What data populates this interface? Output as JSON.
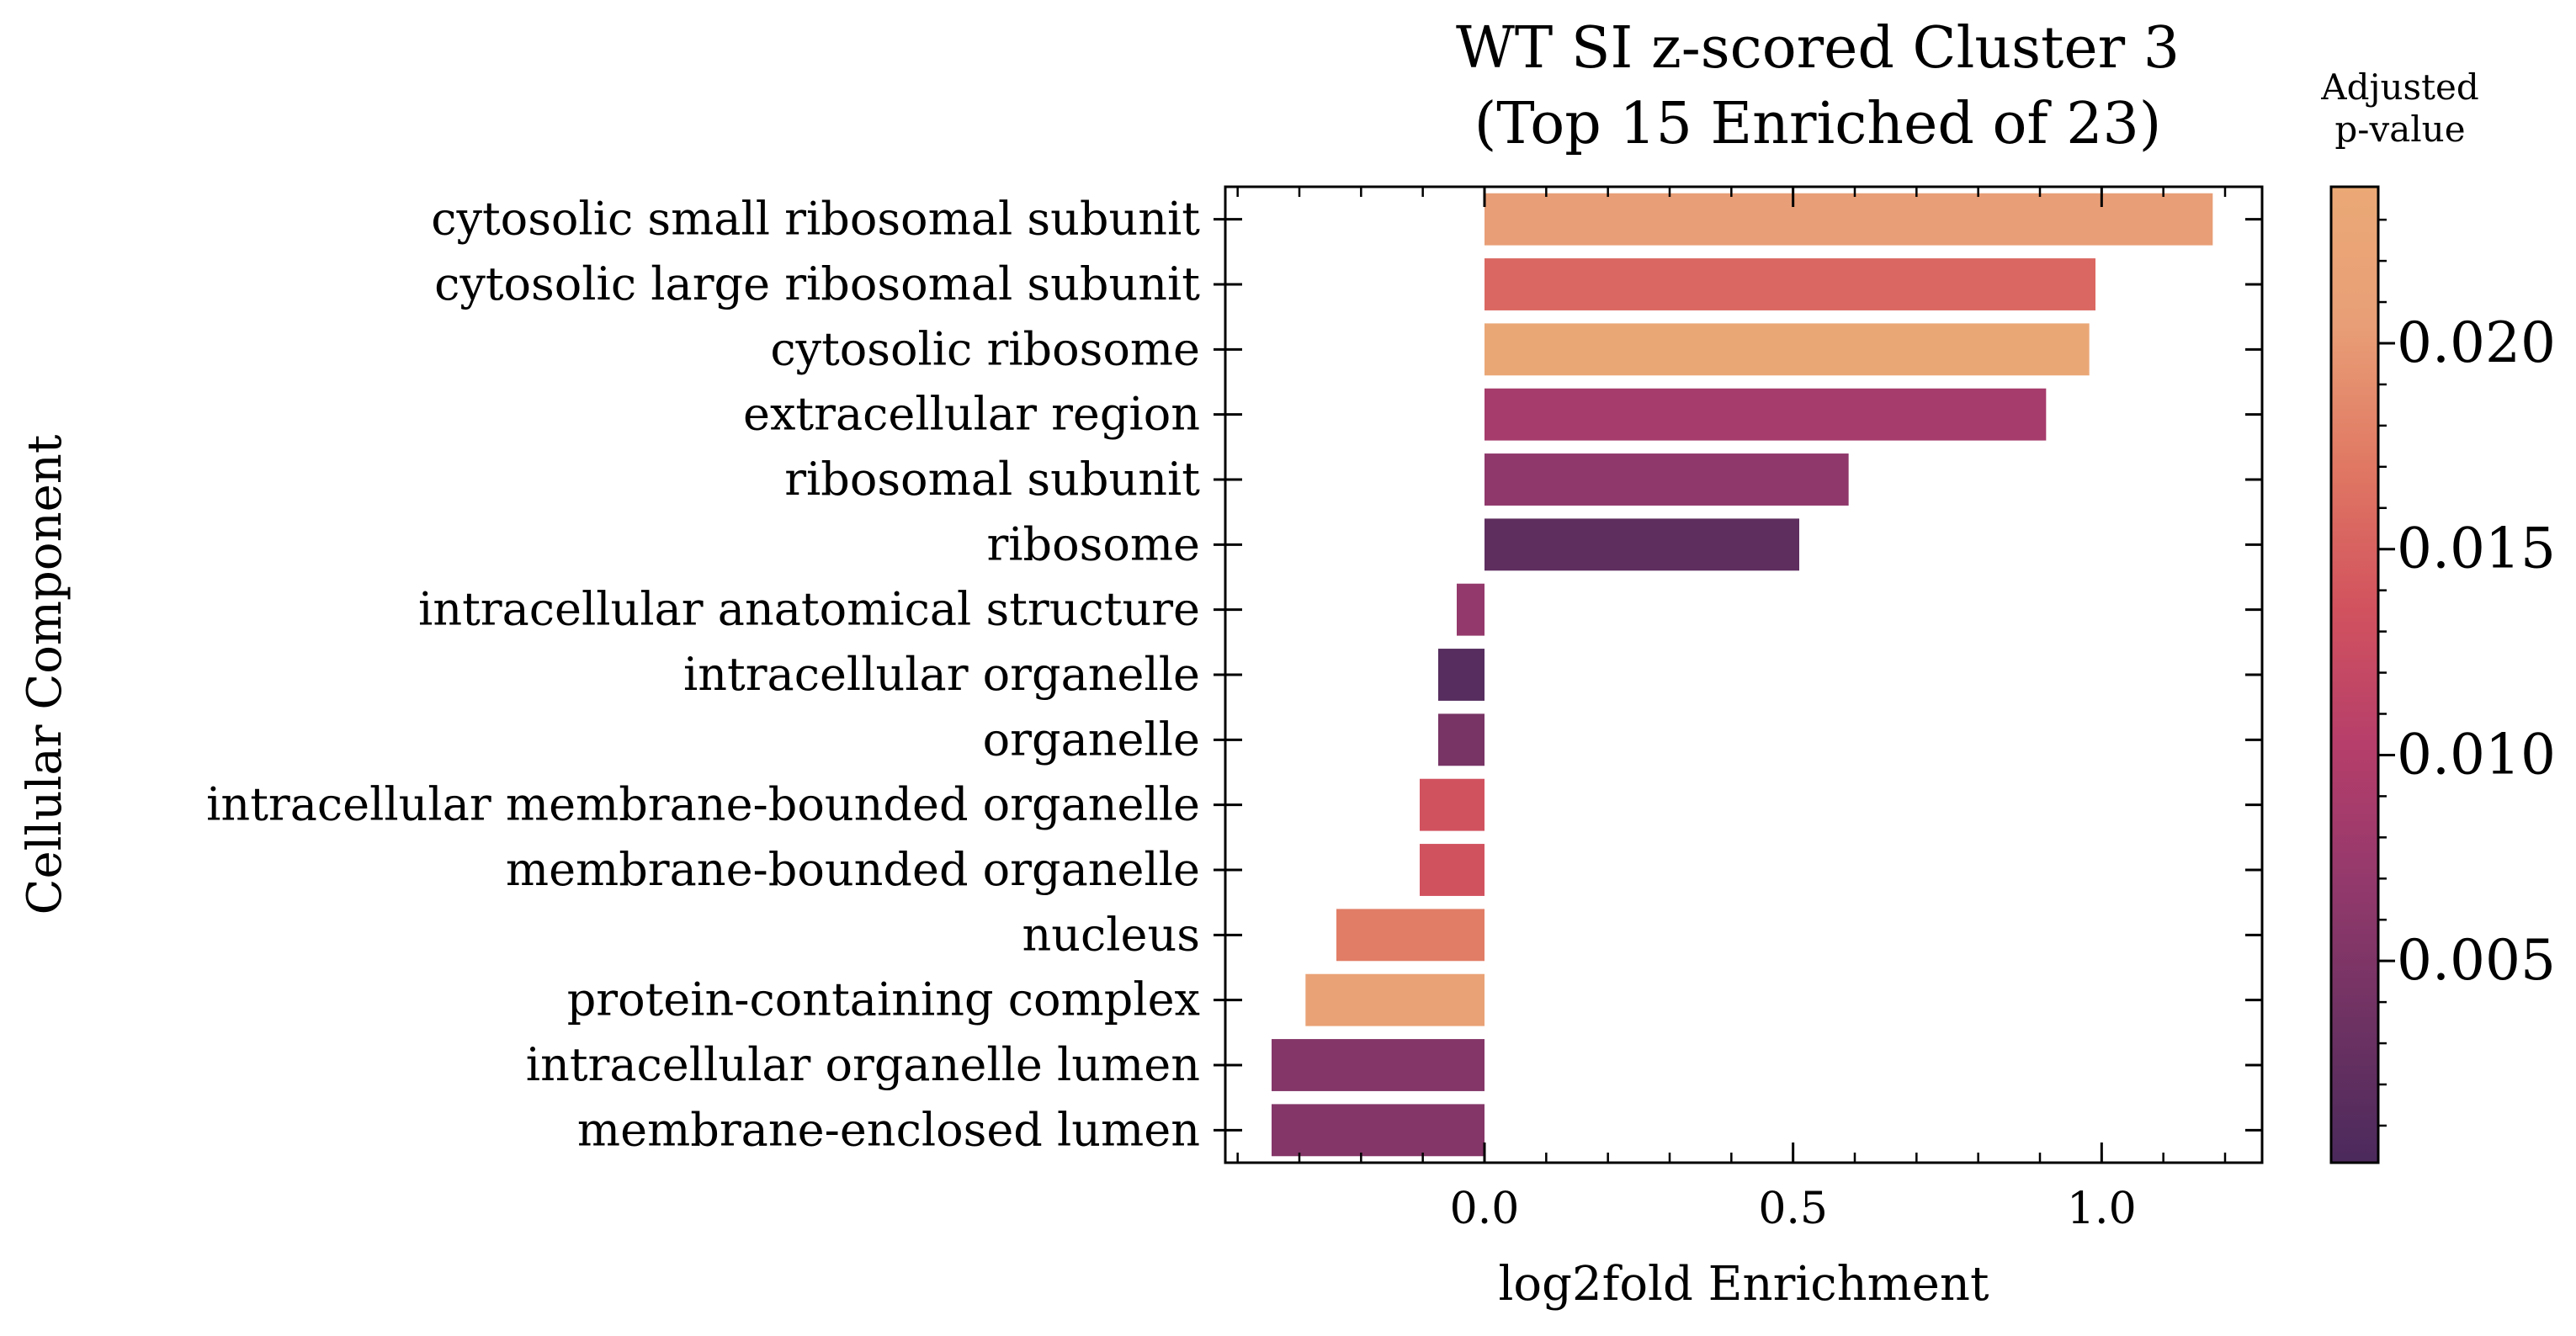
{
  "chart_data": {
    "type": "bar",
    "orientation": "horizontal",
    "title_line1": "WT SI z-scored Cluster 3",
    "title_line2": "(Top 15 Enriched of 23)",
    "xlabel": "log2fold Enrichment",
    "ylabel": "Cellular Component",
    "xlim": [
      -0.42,
      1.26
    ],
    "xticks": [
      0.0,
      0.5,
      1.0
    ],
    "xtick_labels": [
      "0.0",
      "0.5",
      "1.0"
    ],
    "categories": [
      "cytosolic small ribosomal subunit",
      "cytosolic large ribosomal subunit",
      "cytosolic ribosome",
      "extracellular region",
      "ribosomal subunit",
      "ribosome",
      "intracellular anatomical structure",
      "intracellular organelle",
      "organelle",
      "intracellular membrane-bounded organelle",
      "membrane-bounded organelle",
      "nucleus",
      "protein-containing complex",
      "intracellular organelle lumen",
      "membrane-enclosed lumen"
    ],
    "values": [
      1.18,
      0.99,
      0.98,
      0.91,
      0.59,
      0.51,
      -0.045,
      -0.075,
      -0.075,
      -0.105,
      -0.105,
      -0.24,
      -0.29,
      -0.345,
      -0.345
    ],
    "pvalues": [
      0.0205,
      0.0155,
      0.0232,
      0.0087,
      0.0065,
      0.002,
      0.007,
      0.0012,
      0.0045,
      0.0135,
      0.0135,
      0.0175,
      0.0215,
      0.0055,
      0.0055
    ],
    "colorbar": {
      "title_line1": "Adjusted",
      "title_line2": "p-value",
      "range": [
        0.0001,
        0.0238
      ],
      "ticks": [
        0.005,
        0.01,
        0.015,
        0.02
      ],
      "tick_labels": [
        "0.005",
        "0.010",
        "0.015",
        "0.020"
      ],
      "colormap": "flare",
      "stops": [
        "#4b2a5c",
        "#6d3262",
        "#93396c",
        "#b63e6a",
        "#d2535e",
        "#e07863",
        "#e89e76",
        "#eba976"
      ]
    }
  }
}
